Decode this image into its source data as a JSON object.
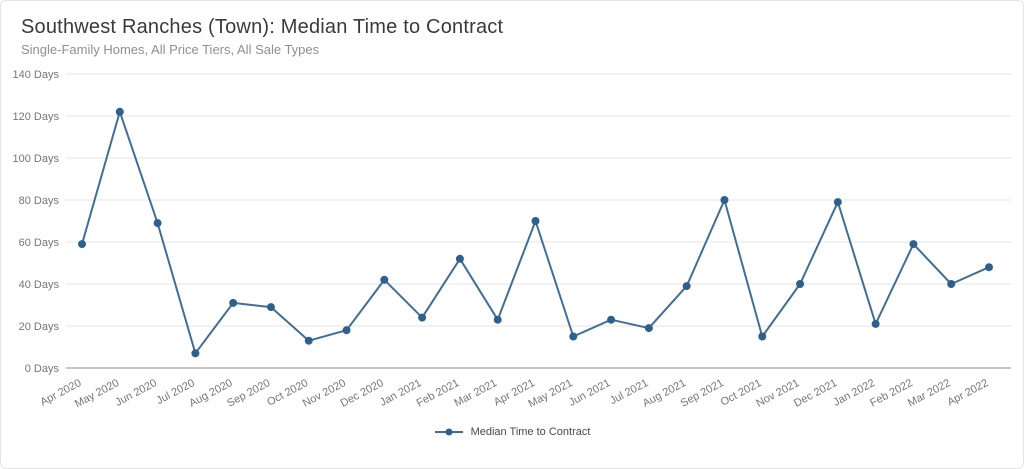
{
  "header": {
    "title": "Southwest Ranches (Town): Median Time to Contract",
    "subtitle": "Single-Family Homes, All Price Tiers, All Sale Types"
  },
  "chart_data": {
    "type": "line",
    "title": "Southwest Ranches (Town): Median Time to Contract",
    "subtitle": "Single-Family Homes, All Price Tiers, All Sale Types",
    "categories": [
      "Apr 2020",
      "May 2020",
      "Jun 2020",
      "Jul 2020",
      "Aug 2020",
      "Sep 2020",
      "Oct 2020",
      "Nov 2020",
      "Dec 2020",
      "Jan 2021",
      "Feb 2021",
      "Mar 2021",
      "Apr 2021",
      "May 2021",
      "Jun 2021",
      "Jul 2021",
      "Aug 2021",
      "Sep 2021",
      "Oct 2021",
      "Nov 2021",
      "Dec 2021",
      "Jan 2022",
      "Feb 2022",
      "Mar 2022",
      "Apr 2022"
    ],
    "series": [
      {
        "name": "Median Time to Contract",
        "values": [
          59,
          122,
          69,
          7,
          31,
          29,
          13,
          18,
          42,
          24,
          52,
          23,
          70,
          15,
          23,
          19,
          39,
          80,
          15,
          40,
          79,
          21,
          59,
          40,
          48
        ]
      }
    ],
    "ylim": [
      0,
      140
    ],
    "yticks": [
      0,
      20,
      40,
      60,
      80,
      100,
      120,
      140
    ],
    "ytick_labels": [
      "0 Days",
      "20 Days",
      "40 Days",
      "60 Days",
      "80 Days",
      "100 Days",
      "120 Days",
      "140 Days"
    ],
    "xlabel": "",
    "ylabel": "",
    "grid": true,
    "legend_position": "bottom",
    "line_color": "#416E96",
    "point_color": "#2F5F8C",
    "grid_color": "#e6e6e6",
    "axis_color": "#8c8c8c",
    "label_color": "#767676"
  }
}
